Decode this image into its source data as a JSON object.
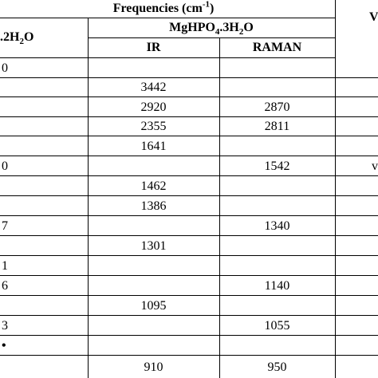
{
  "header": {
    "title": [
      {
        "text": "Frequencies (cm"
      },
      {
        "sup": "-1"
      },
      {
        "text": ")"
      }
    ],
    "left_header": [
      {
        "text": ".2H"
      },
      {
        "sub": "2"
      },
      {
        "text": "O"
      }
    ],
    "compound": [
      {
        "text": "MgHPO"
      },
      {
        "sub": "4"
      },
      {
        "text": ".3H"
      },
      {
        "sub": "2"
      },
      {
        "text": "O"
      }
    ],
    "ir": "IR",
    "raman": "RAMAN",
    "right_header": "V"
  },
  "rows": [
    {
      "left": "0",
      "ir": null,
      "raman": null,
      "right": null
    },
    {
      "left": null,
      "ir": "3442",
      "raman": null,
      "right": null
    },
    {
      "left": null,
      "ir": "2920",
      "raman": "2870",
      "right": null
    },
    {
      "left": null,
      "ir": "2355",
      "raman": "2811",
      "right": null
    },
    {
      "left": null,
      "ir": "1641",
      "raman": null,
      "right": null
    },
    {
      "left": "0",
      "ir": null,
      "raman": "1542",
      "right": "v"
    },
    {
      "left": null,
      "ir": "1462",
      "raman": null,
      "right": null
    },
    {
      "left": null,
      "ir": "1386",
      "raman": null,
      "right": null
    },
    {
      "left": "7",
      "ir": null,
      "raman": "1340",
      "right": null
    },
    {
      "left": null,
      "ir": "1301",
      "raman": null,
      "right": null
    },
    {
      "left": "1",
      "ir": null,
      "raman": null,
      "right": null
    },
    {
      "left": "6",
      "ir": null,
      "raman": "1140",
      "right": null
    },
    {
      "left": null,
      "ir": "1095",
      "raman": null,
      "right": null
    },
    {
      "left": "3",
      "ir": null,
      "raman": "1055",
      "right": null
    },
    {
      "left": "•",
      "ir": null,
      "raman": null,
      "right": null
    },
    {
      "left": null,
      "ir": "910",
      "raman": "950",
      "right": null
    }
  ]
}
